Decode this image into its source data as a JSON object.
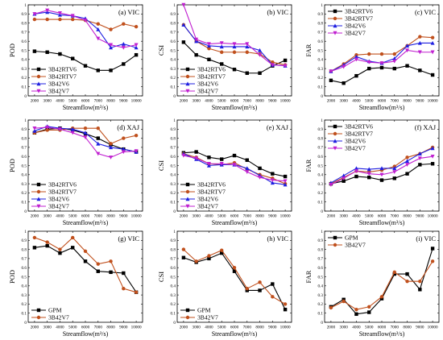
{
  "chart_data": [
    {
      "type": "line",
      "title": "(a) VIC",
      "ylabel": "POD",
      "xlabel": "Streamflow(m³/s)",
      "x": [
        2000,
        3000,
        4000,
        5000,
        6000,
        7000,
        8000,
        9000,
        10000
      ],
      "xticks": [
        "2000",
        "3000",
        "4000",
        "5000",
        "6000",
        "7000",
        "8000",
        "9000",
        "10000"
      ],
      "ylim": [
        0,
        1.0
      ],
      "yticks": [
        "0",
        "0.1",
        "0.2",
        "0.3",
        "0.4",
        "0.5",
        "0.6",
        "0.7",
        "0.8",
        "0.9",
        "1"
      ],
      "legend": "bottom-left",
      "series": [
        {
          "name": "3B42RTV6",
          "color": "#000000",
          "marker": "square",
          "values": [
            0.49,
            0.48,
            0.46,
            0.41,
            0.33,
            0.28,
            0.28,
            0.35,
            0.45
          ]
        },
        {
          "name": "3B42RTV7",
          "color": "#c0501d",
          "marker": "circle",
          "values": [
            0.84,
            0.84,
            0.84,
            0.84,
            0.83,
            0.79,
            0.73,
            0.79,
            0.76
          ]
        },
        {
          "name": "3B42V6",
          "color": "#1f1fe0",
          "marker": "triangle",
          "values": [
            0.9,
            0.92,
            0.89,
            0.88,
            0.85,
            0.73,
            0.53,
            0.57,
            0.53
          ]
        },
        {
          "name": "3B42V7",
          "color": "#c020d0",
          "marker": "triangle-down",
          "values": [
            0.9,
            0.94,
            0.91,
            0.88,
            0.83,
            0.63,
            0.56,
            0.53,
            0.56
          ]
        }
      ]
    },
    {
      "type": "line",
      "title": "(b) VIC",
      "ylabel": "CSI",
      "xlabel": "Streamflow(m³/s)",
      "x": [
        2000,
        3000,
        4000,
        5000,
        6000,
        7000,
        8000,
        9000,
        10000
      ],
      "xticks": [
        "2000",
        "3000",
        "4000",
        "5000",
        "6000",
        "7000",
        "8000",
        "9000",
        "10000"
      ],
      "ylim": [
        0,
        1.0
      ],
      "yticks": [
        "0",
        "0.1",
        "0.2",
        "0.3",
        "0.4",
        "0.5",
        "0.6",
        "0.7",
        "0.8",
        "0.9",
        "1"
      ],
      "legend": "bottom-left",
      "series": [
        {
          "name": "3B42RTV6",
          "color": "#000000",
          "marker": "square",
          "values": [
            0.59,
            0.45,
            0.4,
            0.35,
            0.29,
            0.25,
            0.25,
            0.33,
            0.39
          ]
        },
        {
          "name": "3B42RTV7",
          "color": "#c0501d",
          "marker": "circle",
          "values": [
            0.78,
            0.6,
            0.52,
            0.48,
            0.48,
            0.48,
            0.46,
            0.37,
            0.34
          ]
        },
        {
          "name": "3B42V6",
          "color": "#1f1fe0",
          "marker": "triangle",
          "values": [
            0.78,
            0.6,
            0.55,
            0.54,
            0.54,
            0.54,
            0.5,
            0.34,
            0.33
          ]
        },
        {
          "name": "3B42V7",
          "color": "#c020d0",
          "marker": "triangle-down",
          "values": [
            1.0,
            0.62,
            0.57,
            0.58,
            0.57,
            0.57,
            0.45,
            0.34,
            0.33
          ]
        }
      ]
    },
    {
      "type": "line",
      "title": "(c) VIC",
      "ylabel": "FAR",
      "xlabel": "Streamflow(m³/s)",
      "x": [
        2000,
        3000,
        4000,
        5000,
        6000,
        7000,
        8000,
        9000,
        10000
      ],
      "xticks": [
        "2000",
        "3000",
        "4000",
        "5000",
        "6000",
        "7000",
        "8000",
        "9000",
        "10000"
      ],
      "ylim": [
        0,
        1.0
      ],
      "yticks": [
        "0",
        "0.1",
        "0.2",
        "0.3",
        "0.4",
        "0.5",
        "0.6",
        "0.7",
        "0.8",
        "0.9",
        "1"
      ],
      "legend": "top-left",
      "series": [
        {
          "name": "3B42RTV6",
          "color": "#000000",
          "marker": "square",
          "values": [
            0.17,
            0.14,
            0.22,
            0.3,
            0.31,
            0.3,
            0.33,
            0.28,
            0.23
          ]
        },
        {
          "name": "3B42RTV7",
          "color": "#c0501d",
          "marker": "circle",
          "values": [
            0.27,
            0.35,
            0.45,
            0.46,
            0.46,
            0.46,
            0.55,
            0.65,
            0.64
          ]
        },
        {
          "name": "3B42V6",
          "color": "#1f1fe0",
          "marker": "triangle",
          "values": [
            0.27,
            0.34,
            0.43,
            0.38,
            0.36,
            0.41,
            0.55,
            0.58,
            0.58
          ]
        },
        {
          "name": "3B42V7",
          "color": "#c020d0",
          "marker": "triangle-down",
          "values": [
            0.27,
            0.32,
            0.4,
            0.37,
            0.36,
            0.38,
            0.5,
            0.48,
            0.48
          ]
        }
      ]
    },
    {
      "type": "line",
      "title": "(d) XAJ",
      "ylabel": "POD",
      "xlabel": "Streamflow(m³/s)",
      "x": [
        2000,
        3000,
        4000,
        5000,
        6000,
        7000,
        8000,
        9000,
        10000
      ],
      "xticks": [
        "2000",
        "3000",
        "4000",
        "5000",
        "6000",
        "7000",
        "8000",
        "9000",
        "10000"
      ],
      "ylim": [
        0,
        1.0
      ],
      "yticks": [
        "0",
        "0.1",
        "0.2",
        "0.3",
        "0.4",
        "0.5",
        "0.6",
        "0.7",
        "0.8",
        "0.9",
        "1"
      ],
      "legend": "bottom-left",
      "series": [
        {
          "name": "3B42RTV6",
          "color": "#000000",
          "marker": "square",
          "values": [
            0.86,
            0.9,
            0.91,
            0.89,
            0.85,
            0.8,
            0.73,
            0.68,
            0.65
          ]
        },
        {
          "name": "3B42RTV7",
          "color": "#c0501d",
          "marker": "circle",
          "values": [
            0.86,
            0.89,
            0.89,
            0.91,
            0.91,
            0.91,
            0.74,
            0.8,
            0.83
          ]
        },
        {
          "name": "3B42V6",
          "color": "#1f1fe0",
          "marker": "triangle",
          "values": [
            0.88,
            0.93,
            0.91,
            0.9,
            0.86,
            0.74,
            0.7,
            0.68,
            0.65
          ]
        },
        {
          "name": "3B42V7",
          "color": "#c020d0",
          "marker": "triangle-down",
          "values": [
            0.91,
            0.92,
            0.9,
            0.86,
            0.81,
            0.63,
            0.59,
            0.65,
            0.66
          ]
        }
      ]
    },
    {
      "type": "line",
      "title": "(e) XAJ",
      "ylabel": "CSI",
      "xlabel": "Streamflow(m³/s)",
      "x": [
        2000,
        3000,
        4000,
        5000,
        6000,
        7000,
        8000,
        9000,
        10000
      ],
      "xticks": [
        "2000",
        "3000",
        "4000",
        "5000",
        "6000",
        "7000",
        "8000",
        "9000",
        "10000"
      ],
      "ylim": [
        0,
        1.0
      ],
      "yticks": [
        "0",
        "0.1",
        "0.2",
        "0.3",
        "0.4",
        "0.5",
        "0.6",
        "0.7",
        "0.8",
        "0.9",
        "1"
      ],
      "legend": "bottom-left",
      "series": [
        {
          "name": "3B42RTV6",
          "color": "#000000",
          "marker": "square",
          "values": [
            0.64,
            0.65,
            0.59,
            0.57,
            0.61,
            0.56,
            0.47,
            0.41,
            0.38
          ]
        },
        {
          "name": "3B42RTV7",
          "color": "#c0501d",
          "marker": "circle",
          "values": [
            0.63,
            0.59,
            0.52,
            0.51,
            0.53,
            0.46,
            0.4,
            0.36,
            0.3
          ]
        },
        {
          "name": "3B42V6",
          "color": "#1f1fe0",
          "marker": "triangle",
          "values": [
            0.63,
            0.57,
            0.5,
            0.51,
            0.51,
            0.47,
            0.39,
            0.31,
            0.29
          ]
        },
        {
          "name": "3B42V7",
          "color": "#c020d0",
          "marker": "triangle-down",
          "values": [
            0.61,
            0.58,
            0.52,
            0.52,
            0.51,
            0.43,
            0.37,
            0.34,
            0.33
          ]
        }
      ]
    },
    {
      "type": "line",
      "title": "(f) XAJ",
      "ylabel": "FAR",
      "xlabel": "Streamflow(m³/s)",
      "x": [
        2000,
        3000,
        4000,
        5000,
        6000,
        7000,
        8000,
        9000,
        10000
      ],
      "xticks": [
        "2000",
        "3000",
        "4000",
        "5000",
        "6000",
        "7000",
        "8000",
        "9000",
        "10000"
      ],
      "ylim": [
        0,
        1.0
      ],
      "yticks": [
        "0",
        "0.1",
        "0.2",
        "0.3",
        "0.4",
        "0.5",
        "0.6",
        "0.7",
        "0.8",
        "0.9",
        "1"
      ],
      "legend": "top-left",
      "series": [
        {
          "name": "3B42RTV6",
          "color": "#000000",
          "marker": "square",
          "values": [
            0.3,
            0.33,
            0.38,
            0.37,
            0.34,
            0.36,
            0.41,
            0.51,
            0.52
          ]
        },
        {
          "name": "3B42RTV7",
          "color": "#c0501d",
          "marker": "circle",
          "values": [
            0.3,
            0.37,
            0.44,
            0.43,
            0.45,
            0.49,
            0.59,
            0.63,
            0.7
          ]
        },
        {
          "name": "3B42V6",
          "color": "#1f1fe0",
          "marker": "triangle",
          "values": [
            0.31,
            0.39,
            0.47,
            0.46,
            0.47,
            0.47,
            0.55,
            0.63,
            0.69
          ]
        },
        {
          "name": "3B42V7",
          "color": "#c020d0",
          "marker": "triangle-down",
          "values": [
            0.29,
            0.36,
            0.44,
            0.41,
            0.4,
            0.43,
            0.51,
            0.58,
            0.6
          ]
        }
      ]
    },
    {
      "type": "line",
      "title": "(g) VIC",
      "ylabel": "POD",
      "xlabel": "Streamflow(m³/s)",
      "x": [
        2000,
        3000,
        4000,
        5000,
        6000,
        7000,
        8000,
        9000,
        10000
      ],
      "xticks": [
        "2000",
        "3000",
        "4000",
        "5000",
        "6000",
        "7000",
        "8000",
        "9000",
        "10000"
      ],
      "ylim": [
        0,
        1.0
      ],
      "yticks": [
        "0",
        "0.1",
        "0.2",
        "0.3",
        "0.4",
        "0.5",
        "0.6",
        "0.7",
        "0.8",
        "0.9",
        "1"
      ],
      "legend": "bottom-left",
      "series": [
        {
          "name": "GPM",
          "color": "#000000",
          "marker": "square",
          "values": [
            0.82,
            0.84,
            0.76,
            0.82,
            0.67,
            0.56,
            0.55,
            0.54,
            0.33
          ]
        },
        {
          "name": "3B42V7",
          "color": "#c0501d",
          "marker": "circle",
          "values": [
            0.93,
            0.88,
            0.8,
            0.93,
            0.78,
            0.64,
            0.67,
            0.37,
            0.33
          ]
        }
      ]
    },
    {
      "type": "line",
      "title": "(h) VIC",
      "ylabel": "CSI",
      "xlabel": "Streamflow(m³/s)",
      "x": [
        2000,
        3000,
        4000,
        5000,
        6000,
        7000,
        8000,
        9000,
        10000
      ],
      "xticks": [
        "2000",
        "3000",
        "4000",
        "5000",
        "6000",
        "7000",
        "8000",
        "9000",
        "10000"
      ],
      "ylim": [
        0,
        1.0
      ],
      "yticks": [
        "0",
        "0.1",
        "0.2",
        "0.3",
        "0.4",
        "0.5",
        "0.6",
        "0.7",
        "0.8",
        "0.9",
        "1"
      ],
      "legend": "bottom-left",
      "series": [
        {
          "name": "GPM",
          "color": "#000000",
          "marker": "square",
          "values": [
            0.71,
            0.66,
            0.7,
            0.76,
            0.56,
            0.35,
            0.35,
            0.42,
            0.14
          ]
        },
        {
          "name": "3B42V7",
          "color": "#c0501d",
          "marker": "circle",
          "values": [
            0.8,
            0.67,
            0.73,
            0.79,
            0.6,
            0.37,
            0.44,
            0.28,
            0.2
          ]
        }
      ]
    },
    {
      "type": "line",
      "title": "(i) VIC",
      "ylabel": "FAR",
      "xlabel": "Streamflow(m³/s)",
      "x": [
        2000,
        3000,
        4000,
        5000,
        6000,
        7000,
        8000,
        9000,
        10000
      ],
      "xticks": [
        "2000",
        "3000",
        "4000",
        "5000",
        "6000",
        "7000",
        "8000",
        "9000",
        "10000"
      ],
      "ylim": [
        0,
        1.0
      ],
      "yticks": [
        "0",
        "0.1",
        "0.2",
        "0.3",
        "0.4",
        "0.5",
        "0.6",
        "0.7",
        "0.8",
        "0.9",
        "1"
      ],
      "legend": "top-left",
      "series": [
        {
          "name": "GPM",
          "color": "#000000",
          "marker": "square",
          "values": [
            0.17,
            0.25,
            0.09,
            0.11,
            0.26,
            0.53,
            0.53,
            0.36,
            0.81
          ]
        },
        {
          "name": "3B42V7",
          "color": "#c0501d",
          "marker": "circle",
          "values": [
            0.16,
            0.23,
            0.14,
            0.17,
            0.28,
            0.55,
            0.45,
            0.45,
            0.67
          ]
        }
      ]
    }
  ]
}
